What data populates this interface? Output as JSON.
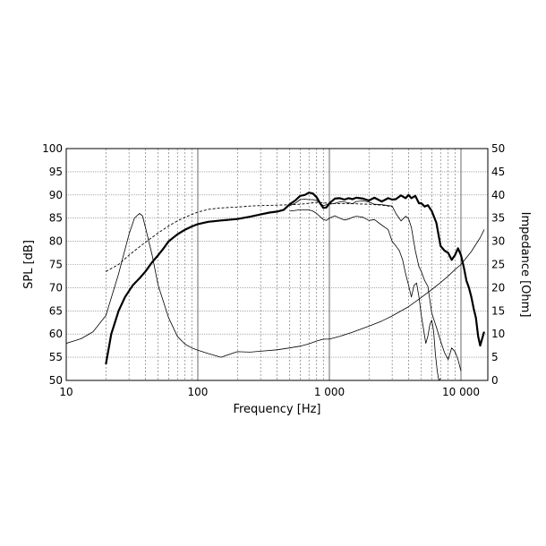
{
  "chart_data": {
    "type": "line",
    "xlabel": "Frequency [Hz]",
    "ylabel": "SPL [dB]",
    "y2label": "Impedance [Ohm]",
    "x_scale": "log",
    "xlim": [
      10,
      16000
    ],
    "ylim": [
      50,
      100
    ],
    "y2lim": [
      0,
      50
    ],
    "grid": true,
    "x_major_ticks": [
      {
        "value": 10,
        "label": "10"
      },
      {
        "value": 100,
        "label": "100"
      },
      {
        "value": 1000,
        "label": "1 000"
      },
      {
        "value": 10000,
        "label": "10 000"
      }
    ],
    "y_ticks": [
      {
        "value": 50,
        "label": "50"
      },
      {
        "value": 55,
        "label": "55"
      },
      {
        "value": 60,
        "label": "60"
      },
      {
        "value": 65,
        "label": "65"
      },
      {
        "value": 70,
        "label": "70"
      },
      {
        "value": 75,
        "label": "75"
      },
      {
        "value": 80,
        "label": "80"
      },
      {
        "value": 85,
        "label": "85"
      },
      {
        "value": 90,
        "label": "90"
      },
      {
        "value": 95,
        "label": "95"
      },
      {
        "value": 100,
        "label": "100"
      }
    ],
    "y2_ticks": [
      {
        "value": 0,
        "label": "0"
      },
      {
        "value": 5,
        "label": "5"
      },
      {
        "value": 10,
        "label": "10"
      },
      {
        "value": 15,
        "label": "15"
      },
      {
        "value": 20,
        "label": "20"
      },
      {
        "value": 25,
        "label": "25"
      },
      {
        "value": 30,
        "label": "30"
      },
      {
        "value": 35,
        "label": "35"
      },
      {
        "value": 40,
        "label": "40"
      },
      {
        "value": 45,
        "label": "45"
      },
      {
        "value": 50,
        "label": "50"
      }
    ],
    "series": [
      {
        "axis": "left",
        "style": "thick",
        "x": [
          20,
          22,
          25,
          28,
          32,
          36,
          40,
          45,
          50,
          55,
          60,
          70,
          80,
          90,
          100,
          120,
          150,
          200,
          250,
          300,
          350,
          400,
          450,
          500,
          550,
          600,
          650,
          700,
          750,
          800,
          850,
          900,
          950,
          1000,
          1100,
          1200,
          1300,
          1400,
          1500,
          1600,
          1800,
          2000,
          2200,
          2500,
          2800,
          3000,
          3200,
          3500,
          3800,
          4000,
          4200,
          4500,
          4800,
          5000,
          5300,
          5600,
          6000,
          6500,
          7000,
          7500,
          8000,
          8500,
          9000,
          9500,
          10000,
          10500,
          11000,
          11500,
          12000,
          12500,
          13000,
          13500,
          14000,
          15000
        ],
        "y": [
          53.5,
          60,
          65,
          68,
          70.5,
          72,
          73.5,
          75.5,
          77,
          78.5,
          80,
          81.5,
          82.5,
          83.2,
          83.7,
          84.2,
          84.5,
          84.8,
          85.3,
          85.8,
          86.2,
          86.4,
          86.8,
          88,
          88.8,
          89.8,
          90,
          90.5,
          90.3,
          89.5,
          88.2,
          87.2,
          87.3,
          88.2,
          89.2,
          89.3,
          89,
          89.3,
          89.1,
          89.4,
          89.2,
          88.8,
          89.4,
          88.6,
          89.3,
          89.0,
          89.1,
          89.9,
          89.3,
          90.0,
          89.3,
          89.8,
          88.2,
          88.2,
          87.5,
          87.8,
          86.5,
          84,
          79,
          78,
          77.5,
          76,
          77,
          78.5,
          77,
          74.5,
          71.5,
          70,
          68,
          65.5,
          63.5,
          59.5,
          57.5,
          60.5
        ]
      },
      {
        "axis": "left",
        "style": "dashed",
        "x": [
          20,
          25,
          30,
          36,
          40,
          50,
          60,
          70,
          80,
          90,
          100,
          120,
          150,
          200,
          250,
          300,
          400,
          500,
          600,
          700,
          800,
          900,
          1000,
          1200,
          1500,
          2000,
          2500,
          3000
        ],
        "y": [
          73.5,
          75,
          77,
          78.8,
          79.8,
          81.8,
          83.3,
          84.4,
          85.2,
          85.8,
          86.3,
          86.9,
          87.2,
          87.4,
          87.6,
          87.7,
          87.8,
          87.9,
          88,
          88.2,
          88.4,
          88.3,
          88.2,
          88.1,
          88.1,
          88.0,
          87.8,
          87.5
        ]
      },
      {
        "axis": "left",
        "style": "thin",
        "x": [
          500,
          550,
          600,
          650,
          700,
          750,
          800,
          850,
          900,
          950,
          1000,
          1100,
          1200,
          1300,
          1400,
          1500,
          1600,
          1800,
          2000,
          2200,
          2500,
          2800,
          3000,
          3200,
          3500,
          3800,
          4000,
          4200,
          4500,
          4800,
          5000,
          5300,
          5600,
          6000,
          6500,
          7000,
          7500,
          8000,
          8500,
          9000,
          9500,
          10000
        ],
        "y": [
          87.7,
          88.2,
          89,
          89.1,
          89.0,
          89.0,
          88.8,
          88.2,
          87.7,
          87.9,
          88,
          88.2,
          88.5,
          88.5,
          88.3,
          88.1,
          88.6,
          88.7,
          88.5,
          88.0,
          87.9,
          87.7,
          87.6,
          86,
          84.4,
          85.4,
          84.9,
          83,
          78.0,
          74.5,
          73.5,
          71.5,
          70.3,
          64.5,
          61.5,
          58.5,
          56.0,
          54.5,
          57.0,
          56.2,
          54.5,
          52.0
        ]
      },
      {
        "axis": "left",
        "style": "thin",
        "x": [
          500,
          600,
          700,
          750,
          800,
          850,
          900,
          950,
          1000,
          1100,
          1200,
          1300,
          1400,
          1500,
          1600,
          1800,
          2000,
          2200,
          2500,
          2800,
          3000,
          3200,
          3400,
          3600,
          3800,
          4000,
          4200,
          4400,
          4600,
          4800,
          5000,
          5200,
          5400,
          5600,
          5800,
          6000,
          6200,
          6400,
          6600,
          6800,
          7000
        ],
        "y": [
          86.5,
          86.8,
          86.8,
          86.5,
          86.0,
          85.3,
          84.7,
          84.5,
          85.0,
          85.5,
          85.0,
          84.6,
          84.8,
          85.2,
          85.4,
          85.2,
          84.5,
          84.7,
          83.5,
          82.5,
          80,
          79,
          78,
          76,
          73,
          70.5,
          68.0,
          70.5,
          71.0,
          68.0,
          64.0,
          61.0,
          58.0,
          59.5,
          62.0,
          63.0,
          60.5,
          55.5,
          52.0,
          49.8,
          50.5
        ]
      },
      {
        "axis": "right",
        "style": "thin",
        "x": [
          10,
          13,
          16,
          20,
          25,
          30,
          33,
          36,
          38,
          40,
          45,
          50,
          60,
          70,
          80,
          90,
          100,
          120,
          150,
          200,
          250,
          300,
          400,
          500,
          600,
          700,
          800,
          900,
          1000,
          1200,
          1500,
          2000,
          2500,
          3000,
          4000,
          5000,
          6000,
          7000,
          8000,
          9000,
          10000,
          12000,
          14000,
          15000
        ],
        "y": [
          8,
          9,
          10.5,
          14,
          23,
          31.5,
          35,
          36,
          35.5,
          33,
          27,
          20.5,
          13.5,
          9.5,
          7.8,
          7.0,
          6.5,
          5.8,
          5.0,
          6.2,
          6.1,
          6.3,
          6.6,
          7.0,
          7.4,
          7.9,
          8.5,
          8.9,
          8.9,
          9.5,
          10.4,
          11.7,
          12.8,
          13.9,
          15.9,
          17.9,
          19.6,
          21.1,
          22.5,
          23.9,
          25.0,
          27.8,
          30.8,
          32.5
        ]
      }
    ]
  }
}
